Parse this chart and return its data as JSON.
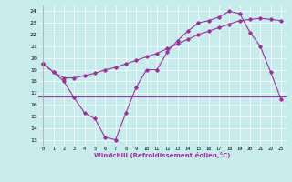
{
  "xlabel": "Windchill (Refroidissement éolien,°C)",
  "bg_color": "#c8ecec",
  "line_color": "#993399",
  "series1_x": [
    0,
    1,
    2,
    3,
    4,
    5,
    6,
    7,
    8,
    9,
    10,
    11,
    12,
    13,
    14,
    15,
    16,
    17,
    18,
    19,
    20,
    21,
    22,
    23
  ],
  "series1_y": [
    19.5,
    18.8,
    18.0,
    16.6,
    15.3,
    14.8,
    13.2,
    13.0,
    15.3,
    17.5,
    19.0,
    19.0,
    20.5,
    21.5,
    22.3,
    23.0,
    23.2,
    23.5,
    24.0,
    23.8,
    22.2,
    21.0,
    18.8,
    16.5
  ],
  "series2_x": [
    0,
    1,
    2,
    3,
    4,
    5,
    6,
    7,
    8,
    9,
    10,
    11,
    12,
    13,
    14,
    15,
    16,
    17,
    18,
    19,
    20,
    21,
    22,
    23
  ],
  "series2_y": [
    19.5,
    18.8,
    18.3,
    18.3,
    18.5,
    18.7,
    19.0,
    19.2,
    19.5,
    19.8,
    20.1,
    20.4,
    20.8,
    21.2,
    21.6,
    22.0,
    22.3,
    22.6,
    22.9,
    23.2,
    23.3,
    23.4,
    23.3,
    23.2
  ],
  "hline_y": 16.7,
  "ylim": [
    12.5,
    24.5
  ],
  "xlim": [
    -0.5,
    23.5
  ],
  "yticks": [
    13,
    14,
    15,
    16,
    17,
    18,
    19,
    20,
    21,
    22,
    23,
    24
  ],
  "xticks": [
    0,
    1,
    2,
    3,
    4,
    5,
    6,
    7,
    8,
    9,
    10,
    11,
    12,
    13,
    14,
    15,
    16,
    17,
    18,
    19,
    20,
    21,
    22,
    23
  ]
}
